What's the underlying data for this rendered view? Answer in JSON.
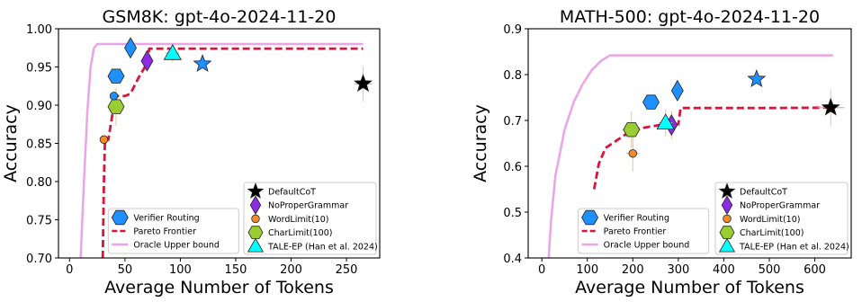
{
  "chart_data": [
    {
      "type": "scatter",
      "title": "GSM8K: gpt-4o-2024-11-20",
      "xlabel": "Average Number of Tokens",
      "ylabel": "Accuracy",
      "xlim": [
        -10,
        280
      ],
      "ylim": [
        0.7,
        1.0
      ],
      "xticks": [
        0,
        50,
        100,
        150,
        200,
        250
      ],
      "yticks": [
        0.7,
        0.75,
        0.8,
        0.85,
        0.9,
        0.95,
        1.0
      ],
      "ytick_labels": [
        "0.70",
        "0.75",
        "0.80",
        "0.85",
        "0.90",
        "0.95",
        "1.00"
      ],
      "grid": false,
      "legend_left": {
        "placement": "lower-center",
        "entries": [
          "Verifier Routing",
          "Pareto Frontier",
          "Oracle Upper bound"
        ]
      },
      "legend_right": {
        "placement": "lower-right",
        "entries": [
          "DefaultCoT",
          "NoProperGrammar",
          "WordLimit(10)",
          "CharLimit(100)",
          "TALE-EP (Han et al. 2024)"
        ]
      },
      "oracle_upper_bound": {
        "x": [
          10,
          13,
          16,
          19,
          22,
          25,
          30,
          60,
          120,
          200,
          265
        ],
        "y": [
          0.7,
          0.8,
          0.89,
          0.95,
          0.975,
          0.98,
          0.98,
          0.98,
          0.98,
          0.98,
          0.98
        ]
      },
      "pareto_frontier": {
        "x": [
          30,
          31,
          32,
          35,
          40,
          42,
          50,
          55,
          62,
          70,
          72,
          100,
          150,
          200,
          265
        ],
        "y": [
          0.7,
          0.8,
          0.855,
          0.855,
          0.9,
          0.912,
          0.912,
          0.915,
          0.935,
          0.955,
          0.974,
          0.974,
          0.974,
          0.974,
          0.974
        ]
      },
      "series": [
        {
          "name": "DefaultCoT",
          "x": 265,
          "y": 0.928,
          "xerr": 8,
          "yerr": 0.023,
          "marker": "star",
          "color": "#000000"
        },
        {
          "name": "NoProperGrammar",
          "x": 70,
          "y": 0.958,
          "marker": "diamond",
          "color": "#8b2be2"
        },
        {
          "name": "WordLimit(10)",
          "x": 31,
          "y": 0.855,
          "marker": "circle",
          "color": "#f28c28"
        },
        {
          "name": "CharLimit(100)",
          "x": 42,
          "y": 0.898,
          "xerr": 5,
          "yerr": 0.025,
          "marker": "hexagon",
          "color": "#9acd32"
        },
        {
          "name": "TALE-EP (Han et al. 2024)",
          "x": 93,
          "y": 0.968,
          "xerr": 6,
          "yerr": 0.012,
          "marker": "triangle",
          "color": "#00ffff"
        },
        {
          "name": "Verifier Routing",
          "points": [
            {
              "x": 42,
              "y": 0.938,
              "marker": "hexagon"
            },
            {
              "x": 55,
              "y": 0.975,
              "marker": "diamond"
            },
            {
              "x": 120,
              "y": 0.954,
              "marker": "star"
            },
            {
              "x": 40,
              "y": 0.912,
              "marker": "circle"
            }
          ],
          "color": "#1e90ff"
        }
      ]
    },
    {
      "type": "scatter",
      "title": "MATH-500: gpt-4o-2024-11-20",
      "xlabel": "Average Number of Tokens",
      "ylabel": "Accuracy",
      "xlim": [
        -30,
        680
      ],
      "ylim": [
        0.4,
        0.9
      ],
      "xticks": [
        0,
        100,
        200,
        300,
        400,
        500,
        600
      ],
      "yticks": [
        0.4,
        0.5,
        0.6,
        0.7,
        0.8,
        0.9
      ],
      "ytick_labels": [
        "0.4",
        "0.5",
        "0.6",
        "0.7",
        "0.8",
        "0.9"
      ],
      "grid": false,
      "legend_left": {
        "placement": "lower-center",
        "entries": [
          "Verifier Routing",
          "Pareto Frontier",
          "Oracle Upper bound"
        ]
      },
      "legend_right": {
        "placement": "lower-right",
        "entries": [
          "DefaultCoT",
          "NoProperGrammar",
          "WordLimit(10)",
          "CharLimit(100)",
          "TALE-EP (Han et al. 2024)"
        ]
      },
      "oracle_upper_bound": {
        "x": [
          15,
          20,
          30,
          50,
          70,
          90,
          110,
          130,
          150,
          200,
          300,
          400,
          500,
          640
        ],
        "y": [
          0.4,
          0.48,
          0.58,
          0.68,
          0.74,
          0.78,
          0.81,
          0.83,
          0.842,
          0.842,
          0.842,
          0.842,
          0.842,
          0.842
        ],
        "dashed": false
      },
      "pareto_frontier": {
        "x": [
          115,
          125,
          140,
          200,
          270,
          300,
          305,
          400,
          500,
          640
        ],
        "y": [
          0.55,
          0.605,
          0.64,
          0.68,
          0.692,
          0.692,
          0.727,
          0.727,
          0.727,
          0.728
        ]
      },
      "series": [
        {
          "name": "DefaultCoT",
          "x": 635,
          "y": 0.728,
          "xerr": 30,
          "yerr": 0.04,
          "marker": "star",
          "color": "#000000"
        },
        {
          "name": "NoProperGrammar",
          "x": 285,
          "y": 0.69,
          "yerr": 0.03,
          "marker": "diamond",
          "color": "#8b2be2"
        },
        {
          "name": "WordLimit(10)",
          "x": 200,
          "y": 0.628,
          "xerr": 15,
          "yerr": 0.04,
          "marker": "circle",
          "color": "#f28c28"
        },
        {
          "name": "CharLimit(100)",
          "x": 197,
          "y": 0.68,
          "xerr": 20,
          "yerr": 0.04,
          "marker": "hexagon",
          "color": "#9acd32"
        },
        {
          "name": "TALE-EP (Han et al. 2024)",
          "x": 272,
          "y": 0.695,
          "xerr": 15,
          "yerr": 0.03,
          "marker": "triangle",
          "color": "#00ffff"
        },
        {
          "name": "Verifier Routing",
          "points": [
            {
              "x": 240,
              "y": 0.74,
              "marker": "hexagon"
            },
            {
              "x": 298,
              "y": 0.765,
              "marker": "diamond"
            },
            {
              "x": 472,
              "y": 0.79,
              "marker": "star"
            }
          ],
          "color": "#1e90ff"
        }
      ]
    }
  ]
}
